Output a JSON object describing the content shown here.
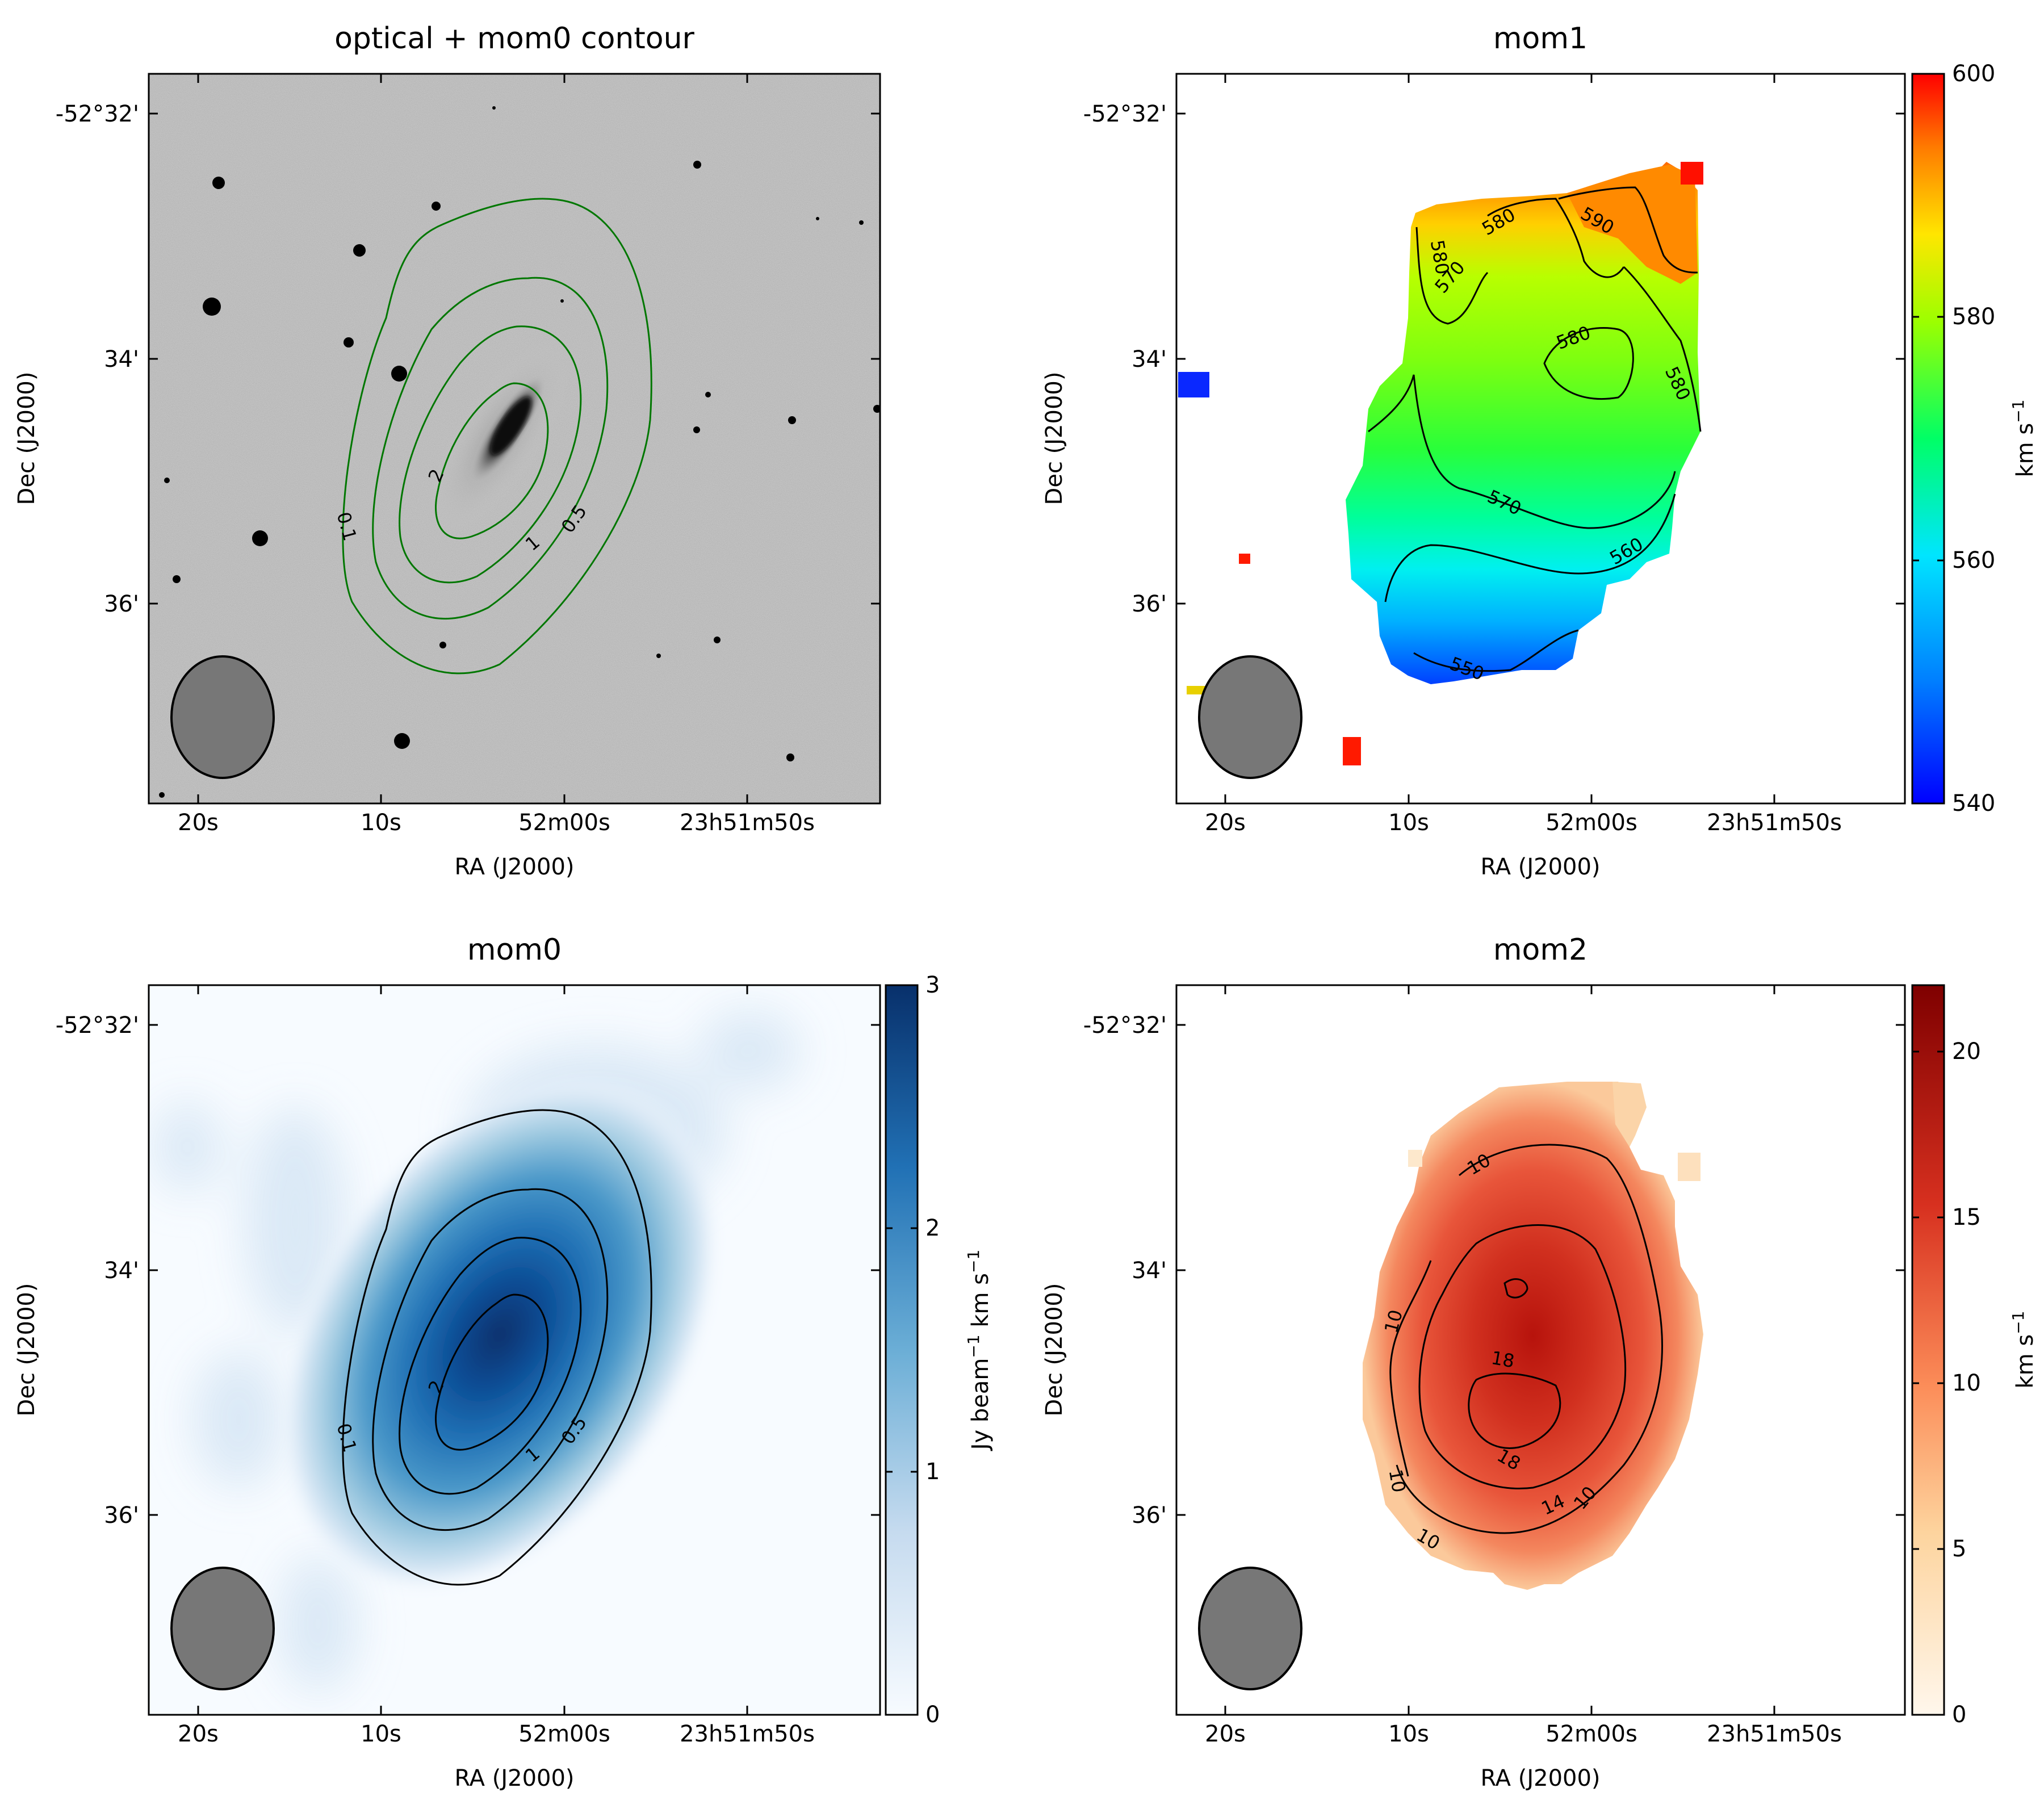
{
  "chart_data": [
    {
      "type": "heatmap",
      "title": "optical + mom0 contour",
      "xlabel": "RA (J2000)",
      "ylabel": "Dec (J2000)",
      "x_ticks": [
        "20s",
        "10s",
        "52m00s",
        "23h51m50s"
      ],
      "y_ticks": [
        "-52°32'",
        "34'",
        "36'"
      ],
      "image": "optical greyscale (DSS)",
      "contour_color": "#007700",
      "contour_levels": [
        0.1,
        0.5,
        1,
        2
      ],
      "contour_labels": [
        "0.1",
        "0.5",
        "1",
        "2"
      ],
      "beam": "ellipse"
    },
    {
      "type": "heatmap",
      "title": "mom1",
      "xlabel": "RA (J2000)",
      "ylabel": "Dec (J2000)",
      "x_ticks": [
        "20s",
        "10s",
        "52m00s",
        "23h51m50s"
      ],
      "y_ticks": [
        "-52°32'",
        "34'",
        "36'"
      ],
      "colormap": "jet",
      "colorbar_range": [
        540,
        600
      ],
      "colorbar_ticks": [
        "540",
        "560",
        "580",
        "600"
      ],
      "colorbar_label": "km s",
      "colorbar_label_sup": "−1",
      "contour_labels": [
        "550",
        "560",
        "570",
        "570",
        "580",
        "580",
        "580",
        "580",
        "590"
      ],
      "beam": "ellipse"
    },
    {
      "type": "heatmap",
      "title": "mom0",
      "xlabel": "RA (J2000)",
      "ylabel": "Dec (J2000)",
      "x_ticks": [
        "20s",
        "10s",
        "52m00s",
        "23h51m50s"
      ],
      "y_ticks": [
        "-52°32'",
        "34'",
        "36'"
      ],
      "colormap": "Blues",
      "colorbar_range": [
        0,
        3
      ],
      "colorbar_ticks": [
        "0",
        "1",
        "2",
        "3"
      ],
      "colorbar_label_parts": [
        "Jy beam",
        "−1",
        " km s",
        "−1"
      ],
      "contour_levels": [
        0.1,
        0.5,
        1,
        2
      ],
      "contour_labels": [
        "0.1",
        "0.5",
        "1",
        "2"
      ],
      "beam": "ellipse"
    },
    {
      "type": "heatmap",
      "title": "mom2",
      "xlabel": "RA (J2000)",
      "ylabel": "Dec (J2000)",
      "x_ticks": [
        "20s",
        "10s",
        "52m00s",
        "23h51m50s"
      ],
      "y_ticks": [
        "-52°32'",
        "34'",
        "36'"
      ],
      "colormap": "OrRd",
      "colorbar_range": [
        0,
        22
      ],
      "colorbar_ticks": [
        "0",
        "5",
        "10",
        "15",
        "20"
      ],
      "colorbar_label": "km s",
      "colorbar_label_sup": "−1",
      "contour_labels": [
        "10",
        "10",
        "10",
        "10",
        "10",
        "14",
        "18",
        "18"
      ],
      "beam": "ellipse"
    }
  ]
}
